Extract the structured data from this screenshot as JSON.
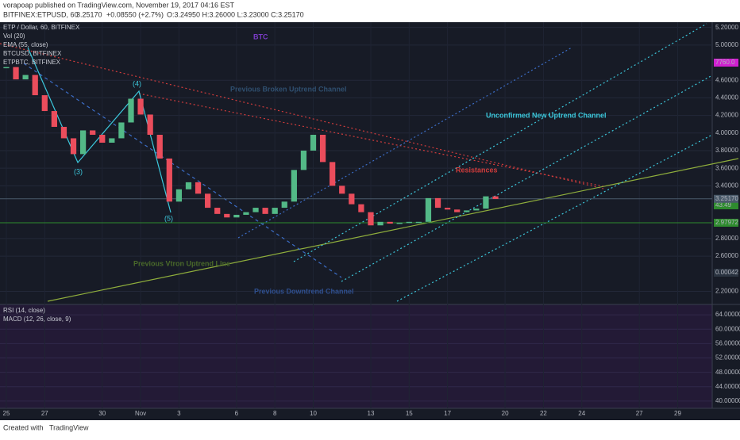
{
  "header": {
    "publisher": "vorapoap published on TradingView.com, November 19, 2017 04:16 EST",
    "symbol": "BITFINEX:ETPUSD, 60",
    "last": "3.25170",
    "change": "+0.08550 (+2.7%)",
    "ohlc": "O:3.24950 H:3.26000 L:3.23000 C:3.25170"
  },
  "legend": [
    "ETP / Dollar, 60, BITFINEX",
    "Vol (20)",
    "EMA (55, close)",
    "BTCUSD, BITFINEX",
    "ETPBTC, BITFINEX"
  ],
  "indicator_legend": [
    "RSI (14, close)",
    "MACD (12, 26, close, 9)"
  ],
  "annotations": {
    "btc": "BTC",
    "broken": "Previous Broken Uptrend Channel",
    "unconfirmed": "Unconfirmed New Uptrend Channel",
    "resistances": "Resistances",
    "vtron": "Previous Vtron Uptrend Line",
    "downtrend": "Previous Downtrend Channel",
    "w3": "(3)",
    "w4": "(4)",
    "w5": "(5)"
  },
  "other_badges": {
    "btc": "7760.0",
    "rsi": "43.49",
    "etpbtc": "0.00042"
  },
  "footer": {
    "created": "Created with",
    "brand": "TradingView"
  },
  "chart_data": {
    "type": "candlestick",
    "x": [
      0,
      0.5,
      1,
      1.5,
      2,
      2.5,
      3,
      3.5,
      4,
      4.5,
      5,
      5.5,
      6,
      6.5,
      7,
      7.5,
      8,
      8.5,
      9,
      9.5,
      10,
      10.5,
      11,
      11.5,
      12,
      12.5,
      13,
      13.5,
      14,
      14.5,
      15,
      15.5,
      16,
      16.5,
      17,
      17.5,
      18,
      18.5,
      19,
      19.5,
      20,
      20.5,
      21,
      21.5,
      22,
      22.5,
      23,
      23.5,
      24,
      24.5,
      25,
      25.5
    ],
    "close": [
      4.75,
      4.61,
      4.66,
      4.43,
      4.25,
      4.07,
      3.94,
      3.76,
      4.03,
      3.98,
      3.89,
      3.94,
      4.12,
      4.39,
      4.21,
      3.98,
      3.71,
      3.22,
      3.36,
      3.44,
      3.31,
      3.15,
      3.08,
      3.04,
      3.07,
      3.1,
      3.15,
      3.08,
      3.15,
      3.22,
      3.58,
      3.8,
      3.98,
      3.67,
      3.4,
      3.31,
      3.19,
      3.1,
      2.95,
      2.99,
      2.97,
      2.98,
      2.99,
      2.99,
      3.26,
      3.15,
      3.13,
      3.1,
      3.12,
      3.14,
      3.28,
      3.25
    ],
    "up_color": "#53b987",
    "down_color": "#eb4d5c",
    "xlim": [
      -0.33,
      36.8
    ],
    "xticks": [
      {
        "value": 0,
        "label": "25"
      },
      {
        "value": 2,
        "label": "27"
      },
      {
        "value": 5,
        "label": "30"
      },
      {
        "value": 7,
        "label": "Nov"
      },
      {
        "value": 9,
        "label": "3"
      },
      {
        "value": 12,
        "label": "6"
      },
      {
        "value": 14,
        "label": "8"
      },
      {
        "value": 16,
        "label": "10"
      },
      {
        "value": 19,
        "label": "13"
      },
      {
        "value": 21,
        "label": "15"
      },
      {
        "value": 23,
        "label": "17"
      },
      {
        "value": 26,
        "label": "20"
      },
      {
        "value": 28,
        "label": "22"
      },
      {
        "value": 30,
        "label": "24"
      },
      {
        "value": 33,
        "label": "27"
      },
      {
        "value": 35,
        "label": "29"
      }
    ],
    "ylim": [
      2.06,
      5.26
    ],
    "yticks": [
      {
        "value": 5.2,
        "label": "5.20000"
      },
      {
        "value": 5.0,
        "label": "5.00000"
      },
      {
        "value": 4.6,
        "label": "4.60000"
      },
      {
        "value": 4.4,
        "label": "4.40000"
      },
      {
        "value": 4.2,
        "label": "4.20000"
      },
      {
        "value": 4.0,
        "label": "4.00000"
      },
      {
        "value": 3.8,
        "label": "3.80000"
      },
      {
        "value": 3.6,
        "label": "3.60000"
      },
      {
        "value": 3.4,
        "label": "3.40000"
      },
      {
        "value": 2.8,
        "label": "2.80000"
      },
      {
        "value": 2.6,
        "label": "2.60000"
      },
      {
        "value": 2.2,
        "label": "2.20000"
      }
    ],
    "price_badges": [
      {
        "value": 3.2517,
        "label": "3.25170",
        "color": "#4a5a6a"
      },
      {
        "value": 2.97972,
        "label": "2.97972",
        "color": "#2e8b2e"
      }
    ],
    "y2lim": [
      38,
      66
    ],
    "y2ticks": [
      {
        "value": 64,
        "label": "64.00000"
      },
      {
        "value": 60,
        "label": "60.00000"
      },
      {
        "value": 56,
        "label": "56.00000"
      },
      {
        "value": 52,
        "label": "52.00000"
      },
      {
        "value": 48,
        "label": "48.00000"
      },
      {
        "value": 44,
        "label": "44.00000"
      },
      {
        "value": 40,
        "label": "40.00000"
      }
    ],
    "grid": true
  }
}
